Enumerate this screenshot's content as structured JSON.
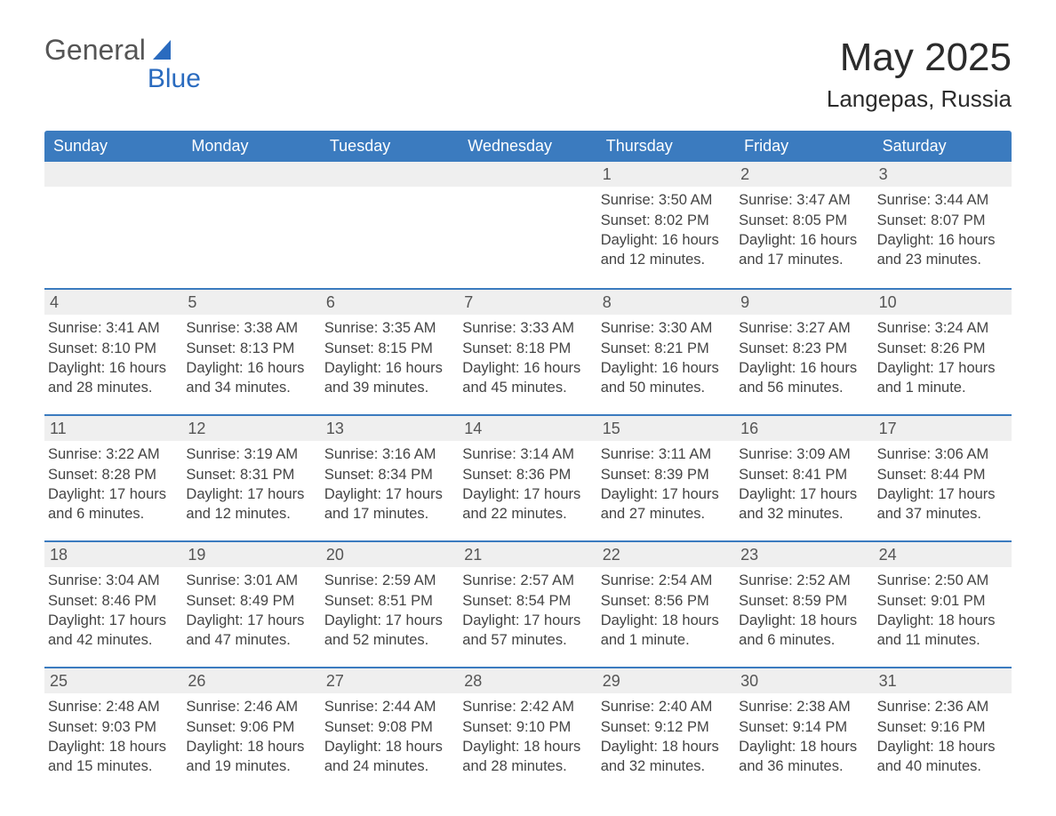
{
  "logo": {
    "text1": "General",
    "text2": "Blue",
    "text_color": "#555555",
    "accent_color": "#2a6bbf"
  },
  "header": {
    "month_title": "May 2025",
    "location": "Langepas, Russia",
    "title_color": "#2b2b2b",
    "title_fontsize": 44,
    "location_fontsize": 26
  },
  "calendar": {
    "weekday_labels": [
      "Sunday",
      "Monday",
      "Tuesday",
      "Wednesday",
      "Thursday",
      "Friday",
      "Saturday"
    ],
    "header_bg": "#3b7bbf",
    "header_text_color": "#ffffff",
    "header_fontsize": 18,
    "week_border_color": "#3b7bbf",
    "daynum_bg": "#efefef",
    "daynum_color": "#555555",
    "body_text_color": "#444444",
    "body_fontsize": 16.5,
    "weeks": [
      [
        null,
        null,
        null,
        null,
        {
          "day": "1",
          "sunrise": "3:50 AM",
          "sunset": "8:02 PM",
          "daylight": "16 hours and 12 minutes."
        },
        {
          "day": "2",
          "sunrise": "3:47 AM",
          "sunset": "8:05 PM",
          "daylight": "16 hours and 17 minutes."
        },
        {
          "day": "3",
          "sunrise": "3:44 AM",
          "sunset": "8:07 PM",
          "daylight": "16 hours and 23 minutes."
        }
      ],
      [
        {
          "day": "4",
          "sunrise": "3:41 AM",
          "sunset": "8:10 PM",
          "daylight": "16 hours and 28 minutes."
        },
        {
          "day": "5",
          "sunrise": "3:38 AM",
          "sunset": "8:13 PM",
          "daylight": "16 hours and 34 minutes."
        },
        {
          "day": "6",
          "sunrise": "3:35 AM",
          "sunset": "8:15 PM",
          "daylight": "16 hours and 39 minutes."
        },
        {
          "day": "7",
          "sunrise": "3:33 AM",
          "sunset": "8:18 PM",
          "daylight": "16 hours and 45 minutes."
        },
        {
          "day": "8",
          "sunrise": "3:30 AM",
          "sunset": "8:21 PM",
          "daylight": "16 hours and 50 minutes."
        },
        {
          "day": "9",
          "sunrise": "3:27 AM",
          "sunset": "8:23 PM",
          "daylight": "16 hours and 56 minutes."
        },
        {
          "day": "10",
          "sunrise": "3:24 AM",
          "sunset": "8:26 PM",
          "daylight": "17 hours and 1 minute."
        }
      ],
      [
        {
          "day": "11",
          "sunrise": "3:22 AM",
          "sunset": "8:28 PM",
          "daylight": "17 hours and 6 minutes."
        },
        {
          "day": "12",
          "sunrise": "3:19 AM",
          "sunset": "8:31 PM",
          "daylight": "17 hours and 12 minutes."
        },
        {
          "day": "13",
          "sunrise": "3:16 AM",
          "sunset": "8:34 PM",
          "daylight": "17 hours and 17 minutes."
        },
        {
          "day": "14",
          "sunrise": "3:14 AM",
          "sunset": "8:36 PM",
          "daylight": "17 hours and 22 minutes."
        },
        {
          "day": "15",
          "sunrise": "3:11 AM",
          "sunset": "8:39 PM",
          "daylight": "17 hours and 27 minutes."
        },
        {
          "day": "16",
          "sunrise": "3:09 AM",
          "sunset": "8:41 PM",
          "daylight": "17 hours and 32 minutes."
        },
        {
          "day": "17",
          "sunrise": "3:06 AM",
          "sunset": "8:44 PM",
          "daylight": "17 hours and 37 minutes."
        }
      ],
      [
        {
          "day": "18",
          "sunrise": "3:04 AM",
          "sunset": "8:46 PM",
          "daylight": "17 hours and 42 minutes."
        },
        {
          "day": "19",
          "sunrise": "3:01 AM",
          "sunset": "8:49 PM",
          "daylight": "17 hours and 47 minutes."
        },
        {
          "day": "20",
          "sunrise": "2:59 AM",
          "sunset": "8:51 PM",
          "daylight": "17 hours and 52 minutes."
        },
        {
          "day": "21",
          "sunrise": "2:57 AM",
          "sunset": "8:54 PM",
          "daylight": "17 hours and 57 minutes."
        },
        {
          "day": "22",
          "sunrise": "2:54 AM",
          "sunset": "8:56 PM",
          "daylight": "18 hours and 1 minute."
        },
        {
          "day": "23",
          "sunrise": "2:52 AM",
          "sunset": "8:59 PM",
          "daylight": "18 hours and 6 minutes."
        },
        {
          "day": "24",
          "sunrise": "2:50 AM",
          "sunset": "9:01 PM",
          "daylight": "18 hours and 11 minutes."
        }
      ],
      [
        {
          "day": "25",
          "sunrise": "2:48 AM",
          "sunset": "9:03 PM",
          "daylight": "18 hours and 15 minutes."
        },
        {
          "day": "26",
          "sunrise": "2:46 AM",
          "sunset": "9:06 PM",
          "daylight": "18 hours and 19 minutes."
        },
        {
          "day": "27",
          "sunrise": "2:44 AM",
          "sunset": "9:08 PM",
          "daylight": "18 hours and 24 minutes."
        },
        {
          "day": "28",
          "sunrise": "2:42 AM",
          "sunset": "9:10 PM",
          "daylight": "18 hours and 28 minutes."
        },
        {
          "day": "29",
          "sunrise": "2:40 AM",
          "sunset": "9:12 PM",
          "daylight": "18 hours and 32 minutes."
        },
        {
          "day": "30",
          "sunrise": "2:38 AM",
          "sunset": "9:14 PM",
          "daylight": "18 hours and 36 minutes."
        },
        {
          "day": "31",
          "sunrise": "2:36 AM",
          "sunset": "9:16 PM",
          "daylight": "18 hours and 40 minutes."
        }
      ]
    ],
    "labels": {
      "sunrise_prefix": "Sunrise: ",
      "sunset_prefix": "Sunset: ",
      "daylight_prefix": "Daylight: "
    }
  }
}
